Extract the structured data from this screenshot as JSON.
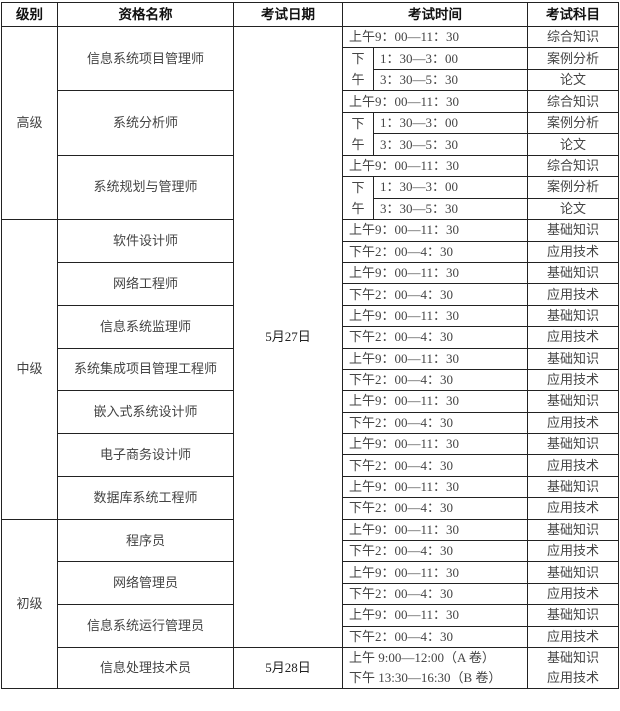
{
  "headers": [
    "级别",
    "资格名称",
    "考试日期",
    "考试时间",
    "考试科目"
  ],
  "dates": [
    "5月27日",
    "5月28日"
  ],
  "afternoon_label": [
    "下",
    "午"
  ],
  "levels": [
    {
      "level": "高级",
      "quals": [
        {
          "name": "信息系统项目管理师",
          "type": "senior",
          "morning": "上午9：00—11：30",
          "morning_subject": "综合知识",
          "afternoon": [
            {
              "time": "1：30—3：00",
              "subject": "案例分析"
            },
            {
              "time": "3：30—5：30",
              "subject": "论文"
            }
          ]
        },
        {
          "name": "系统分析师",
          "type": "senior",
          "morning": "上午9：00—11：30",
          "morning_subject": "综合知识",
          "afternoon": [
            {
              "time": "  1：30—3：00",
              "subject": "案例分析"
            },
            {
              "time": "  3：30—5：30",
              "subject": "论文"
            }
          ]
        },
        {
          "name": "系统规划与管理师",
          "type": "senior",
          "morning": "上午9：00—11：30",
          "morning_subject": "综合知识",
          "afternoon": [
            {
              "time": "1：30—3：00",
              "subject": "案例分析"
            },
            {
              "time": "3：30—5：30",
              "subject": "论文"
            }
          ]
        }
      ]
    },
    {
      "level": "中级",
      "quals": [
        {
          "name": "软件设计师",
          "sessions": [
            {
              "time": "上午9：00—11：30",
              "subject": "基础知识"
            },
            {
              "time": "下午2：00—4：30",
              "subject": "应用技术"
            }
          ]
        },
        {
          "name": "网络工程师",
          "sessions": [
            {
              "time": "上午9：00—11：30",
              "subject": "基础知识"
            },
            {
              "time": "下午2：00—4：30",
              "subject": "应用技术"
            }
          ]
        },
        {
          "name": "信息系统监理师",
          "sessions": [
            {
              "time": "上午9：00—11：30",
              "subject": "基础知识"
            },
            {
              "time": "下午2：00—4：30",
              "subject": "应用技术"
            }
          ]
        },
        {
          "name": "系统集成项目管理工程师",
          "sessions": [
            {
              "time": "上午9：00—11：30",
              "subject": "基础知识"
            },
            {
              "time": "下午2：00—4：30",
              "subject": "应用技术"
            }
          ]
        },
        {
          "name": "嵌入式系统设计师",
          "sessions": [
            {
              "time": "上午9：00—11：30",
              "subject": "基础知识"
            },
            {
              "time": "下午2：00—4：30",
              "subject": "应用技术"
            }
          ]
        },
        {
          "name": "电子商务设计师",
          "sessions": [
            {
              "time": "上午9：00—11：30",
              "subject": "基础知识"
            },
            {
              "time": "下午2：00—4：30",
              "subject": "应用技术"
            }
          ]
        },
        {
          "name": "数据库系统工程师",
          "sessions": [
            {
              "time": "上午9：00—11：30",
              "subject": "基础知识"
            },
            {
              "time": "下午2：00—4：30",
              "subject": "应用技术"
            }
          ]
        }
      ]
    },
    {
      "level": "初级",
      "quals": [
        {
          "name": "程序员",
          "sessions": [
            {
              "time": "上午9：00—11：30",
              "subject": "基础知识"
            },
            {
              "time": "下午2：00—4：30",
              "subject": "应用技术"
            }
          ]
        },
        {
          "name": "网络管理员",
          "sessions": [
            {
              "time": "上午9：00—11：30",
              "subject": "基础知识"
            },
            {
              "time": "下午2：00—4：30",
              "subject": "应用技术"
            }
          ]
        },
        {
          "name": "信息系统运行管理员",
          "sessions": [
            {
              "time": "上午9：00—11：30",
              "subject": "基础知识"
            },
            {
              "time": "下午2：00—4：30",
              "subject": "应用技术"
            }
          ]
        },
        {
          "name": "信息处理技术员",
          "type": "combined",
          "lines": [
            "上午  9:00—12:00（A 卷）",
            "下午 13:30—16:30（B 卷）"
          ],
          "subjects": [
            "基础知识",
            "应用技术"
          ]
        }
      ]
    }
  ]
}
